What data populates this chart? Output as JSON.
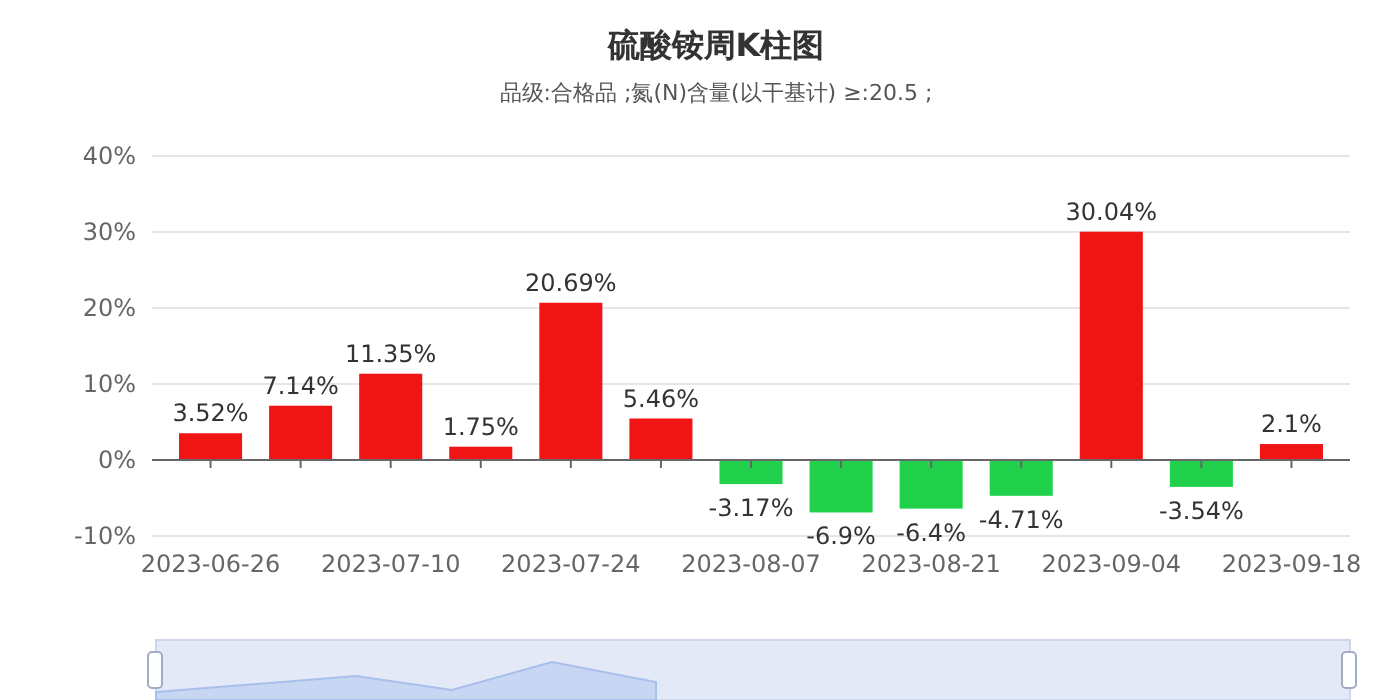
{
  "chart_data": {
    "type": "bar",
    "title": "硫酸铵周K柱图",
    "subtitle": "品级:合格品 ;氮(N)含量(以干基计) ≥:20.5 ;",
    "categories": [
      "2023-06-26",
      null,
      "2023-07-10",
      null,
      "2023-07-24",
      null,
      "2023-08-07",
      null,
      "2023-08-21",
      null,
      "2023-09-04",
      null,
      "2023-09-18"
    ],
    "values": [
      3.52,
      7.14,
      11.35,
      1.75,
      20.69,
      5.46,
      -3.17,
      -6.9,
      -6.4,
      -4.71,
      30.04,
      -3.54,
      2.1
    ],
    "colors": [
      "#f01414",
      "#f01414",
      "#f01414",
      "#f01414",
      "#f01414",
      "#f01414",
      "#22d14b",
      "#22d14b",
      "#22d14b",
      "#22d14b",
      "#f01414",
      "#22d14b",
      "#f01414"
    ],
    "value_labels": [
      "3.52%",
      "7.14%",
      "11.35%",
      "1.75%",
      "20.69%",
      "5.46%",
      "-3.17%",
      "-6.9%",
      "-6.4%",
      "-4.71%",
      "30.04%",
      "-3.54%",
      "2.1%"
    ],
    "ylim": [
      -10,
      40
    ],
    "yticks": [
      {
        "value": -10,
        "label": "-10%"
      },
      {
        "value": 0,
        "label": "0%"
      },
      {
        "value": 10,
        "label": "10%"
      },
      {
        "value": 20,
        "label": "20%"
      },
      {
        "value": 30,
        "label": "30%"
      },
      {
        "value": 40,
        "label": "40%"
      }
    ],
    "grid": "y"
  }
}
